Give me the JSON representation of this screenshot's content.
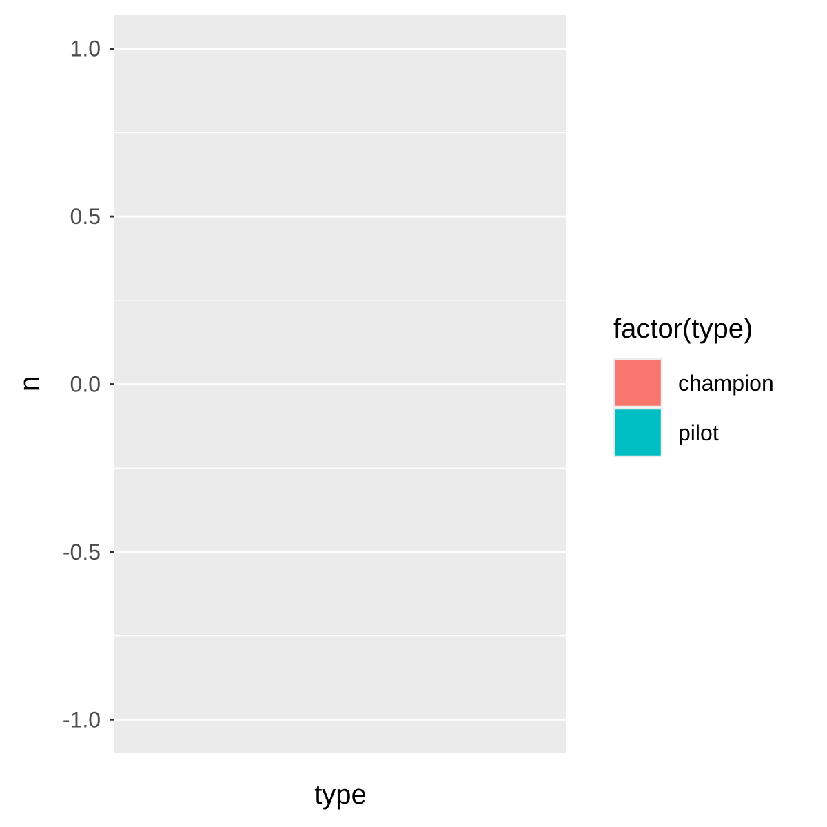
{
  "chart_data": {
    "type": "bar",
    "categories": [],
    "series": [],
    "xlabel": "type",
    "ylabel": "n",
    "ylim": [
      -1.1,
      1.1
    ],
    "yticks": [
      {
        "value": 1.0,
        "label": "1.0"
      },
      {
        "value": 0.5,
        "label": "0.5"
      },
      {
        "value": 0.0,
        "label": "0.0"
      },
      {
        "value": -0.5,
        "label": "-0.5"
      },
      {
        "value": -1.0,
        "label": "-1.0"
      }
    ],
    "y_minor_gridlines": [
      0.75,
      0.25,
      -0.25,
      -0.75
    ],
    "grid": true,
    "panel_color": "#ebebeb",
    "gridline_color": "#ffffff",
    "legend": {
      "title": "factor(type)",
      "position": "right",
      "entries": [
        {
          "label": "champion",
          "color": "#f8766d"
        },
        {
          "label": "pilot",
          "color": "#00bfc4"
        }
      ]
    }
  }
}
